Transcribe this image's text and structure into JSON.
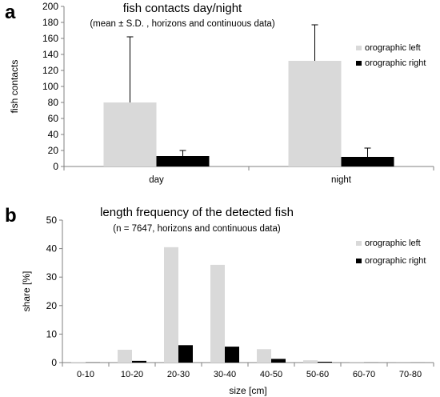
{
  "panels": [
    "a",
    "b"
  ],
  "colors": {
    "orographic_left": "#d9d9d9",
    "orographic_right": "#000000",
    "axis": "#808080",
    "error_bar": "#000000"
  },
  "chart_data": [
    {
      "type": "bar",
      "title": "fish contacts day/night",
      "subtitle": "(mean ± S.D. , horizons and continuous data)",
      "xlabel": "",
      "ylabel": "fish contacts",
      "categories": [
        "day",
        "night"
      ],
      "ylim": [
        0,
        200
      ],
      "yticks": [
        0,
        20,
        40,
        60,
        80,
        100,
        120,
        140,
        160,
        180,
        200
      ],
      "legend_position": "right",
      "grid": false,
      "series": [
        {
          "name": "orographic left",
          "values": [
            80,
            132
          ],
          "error": [
            82,
            45
          ],
          "color": "#d9d9d9"
        },
        {
          "name": "orographic right",
          "values": [
            13,
            12
          ],
          "error": [
            7,
            11
          ],
          "color": "#000000"
        }
      ]
    },
    {
      "type": "bar",
      "title": "length frequency of the detected fish",
      "subtitle": "(n = 7647, horizons and continuous data)",
      "xlabel": "size [cm]",
      "ylabel": "share [%]",
      "categories": [
        "0-10",
        "10-20",
        "20-30",
        "30-40",
        "40-50",
        "50-60",
        "60-70",
        "70-80"
      ],
      "ylim": [
        0,
        50
      ],
      "yticks": [
        0,
        10,
        20,
        30,
        40,
        50
      ],
      "legend_position": "right",
      "grid": false,
      "series": [
        {
          "name": "orographic left",
          "values": [
            0.1,
            4.5,
            40.5,
            34.3,
            4.7,
            0.8,
            0.05,
            0.02
          ],
          "color": "#d9d9d9"
        },
        {
          "name": "orographic right",
          "values": [
            0.05,
            0.6,
            6.1,
            5.6,
            1.3,
            0.3,
            0.02,
            0.01
          ],
          "color": "#000000"
        }
      ]
    }
  ]
}
